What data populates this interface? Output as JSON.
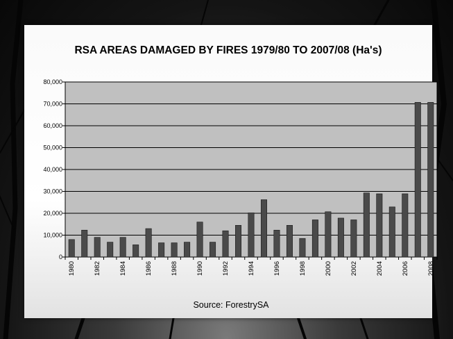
{
  "chart_data": {
    "type": "bar",
    "title": "RSA AREAS DAMAGED BY FIRES 1979/80 TO 2007/08 (Ha's)",
    "xlabel": "",
    "ylabel": "",
    "x": [
      1980,
      1981,
      1982,
      1983,
      1984,
      1985,
      1986,
      1987,
      1988,
      1989,
      1990,
      1991,
      1992,
      1993,
      1994,
      1995,
      1996,
      1997,
      1998,
      1999,
      2000,
      2001,
      2002,
      2003,
      2004,
      2005,
      2006,
      2007,
      2008
    ],
    "x_tick_labels": [
      "1980",
      "1982",
      "1984",
      "1986",
      "1988",
      "1990",
      "1992",
      "1994",
      "1996",
      "1998",
      "2000",
      "2002",
      "2004",
      "2006",
      "2008"
    ],
    "values": [
      8000,
      12300,
      9000,
      6800,
      9000,
      5600,
      13000,
      6500,
      6500,
      6800,
      16000,
      6800,
      12000,
      14500,
      20200,
      26200,
      12300,
      14500,
      8500,
      17000,
      20700,
      17800,
      17000,
      29300,
      28900,
      22900,
      28900,
      70700,
      70700
    ],
    "ylim": [
      0,
      80000
    ],
    "y_ticks": [
      "0",
      "10,000",
      "20,000",
      "30,000",
      "40,000",
      "50,000",
      "60,000",
      "70,000",
      "80,000"
    ],
    "grid": true,
    "legend": "none",
    "colors": {
      "bar": "#4a4a4a",
      "bar_border": "#1a1a1a",
      "plot_bg": "#c0c0c0",
      "gridline": "#000000"
    }
  },
  "source_text": "Source: ForestrySA"
}
